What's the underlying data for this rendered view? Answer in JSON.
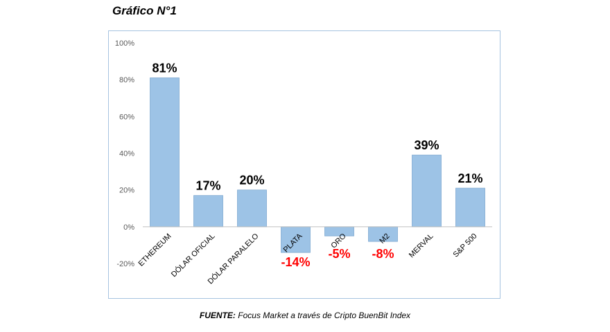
{
  "figure": {
    "title": "Gráfico N°1",
    "source_label": "FUENTE:",
    "source_text": "Focus Market a través de Cripto BuenBit Index"
  },
  "chart_data": {
    "type": "bar",
    "categories": [
      "ETHEREUM",
      "DÓLAR OFICIAL",
      "DÓLAR PARALELO",
      "PLATA",
      "ORO",
      "M2",
      "MERVAL",
      "S&P 500"
    ],
    "values": [
      81,
      17,
      20,
      -14,
      -5,
      -8,
      39,
      21
    ],
    "data_labels": [
      "81%",
      "17%",
      "20%",
      "-14%",
      "-5%",
      "-8%",
      "39%",
      "21%"
    ],
    "yticks": [
      "-20%",
      "0%",
      "20%",
      "40%",
      "60%",
      "80%",
      "100%"
    ],
    "ytick_values": [
      -20,
      0,
      20,
      40,
      60,
      80,
      100
    ],
    "ylim": [
      -20,
      100
    ],
    "grid": false,
    "legend": "none",
    "colors": {
      "bar": "#9dc3e6",
      "bar_stroke": "#7fa9d1",
      "positive_label": "#000000",
      "negative_label": "#ff0000",
      "axis": "#bfbfbf",
      "tick_text": "#595959",
      "frame": "#a6c3e0"
    }
  }
}
